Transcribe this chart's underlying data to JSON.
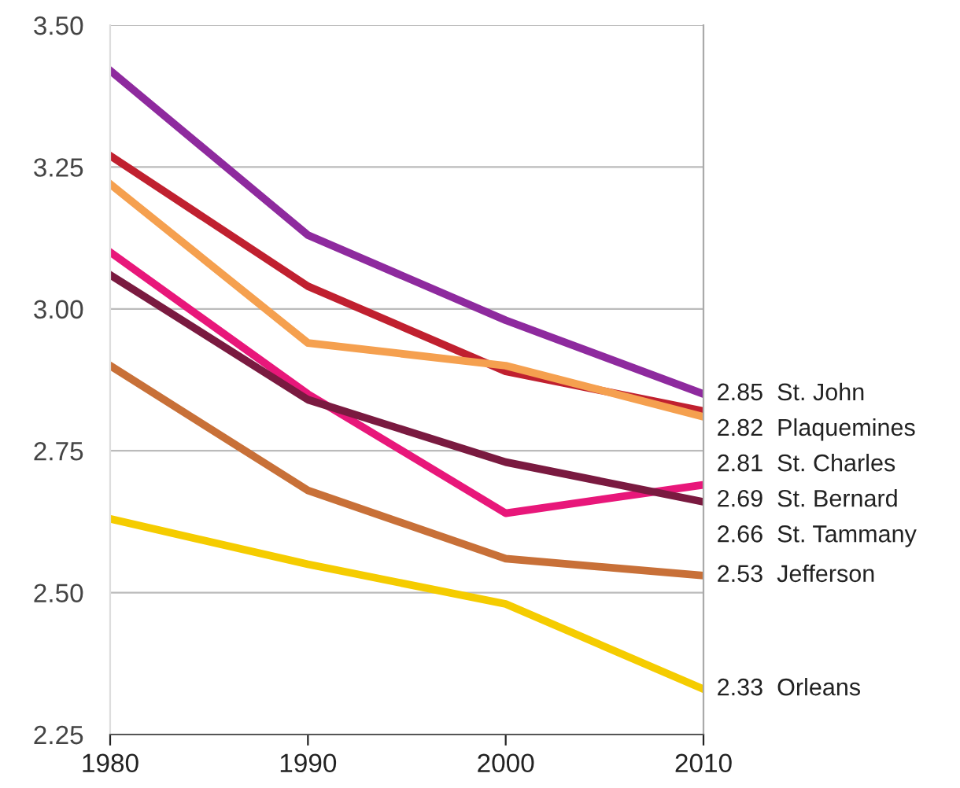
{
  "chart_data": {
    "type": "line",
    "x": [
      1980,
      1990,
      2000,
      2010
    ],
    "series": [
      {
        "name": "St. John",
        "color": "#8e2a9e",
        "values": [
          3.42,
          3.13,
          2.98,
          2.85
        ],
        "value_labels": [
          null,
          null,
          null,
          "2.85"
        ]
      },
      {
        "name": "Plaquemines",
        "color": "#c0202f",
        "values": [
          3.27,
          3.04,
          2.89,
          2.82
        ],
        "value_labels": [
          null,
          null,
          null,
          "2.82"
        ]
      },
      {
        "name": "St. Charles",
        "color": "#f5a04f",
        "values": [
          3.22,
          2.94,
          2.9,
          2.81
        ],
        "value_labels": [
          null,
          null,
          null,
          "2.81"
        ]
      },
      {
        "name": "St. Bernard",
        "color": "#e8177a",
        "values": [
          3.1,
          2.85,
          2.64,
          2.69
        ],
        "value_labels": [
          null,
          null,
          null,
          "2.69"
        ]
      },
      {
        "name": "St. Tammany",
        "color": "#7a1a40",
        "values": [
          3.06,
          2.84,
          2.73,
          2.66
        ],
        "value_labels": [
          null,
          null,
          null,
          "2.66"
        ]
      },
      {
        "name": "Jefferson",
        "color": "#c87038",
        "values": [
          2.9,
          2.68,
          2.56,
          2.53
        ],
        "value_labels": [
          null,
          null,
          null,
          "2.53"
        ]
      },
      {
        "name": "Orleans",
        "color": "#f5cc00",
        "values": [
          2.63,
          2.55,
          2.48,
          2.33
        ],
        "value_labels": [
          null,
          null,
          null,
          "2.33"
        ]
      }
    ],
    "xlim": [
      1980,
      2010
    ],
    "xticks": [
      1980,
      1990,
      2000,
      2010
    ],
    "ylim": [
      2.25,
      3.5
    ],
    "yticks": [
      {
        "value": 2.25,
        "label": "2.25"
      },
      {
        "value": 2.5,
        "label": "2.50"
      },
      {
        "value": 2.75,
        "label": "2.75"
      },
      {
        "value": 3.0,
        "label": "3.00"
      },
      {
        "value": 3.25,
        "label": "3.25"
      },
      {
        "value": 3.5,
        "label": "3.50"
      }
    ],
    "grid": "y",
    "marker": "none",
    "line_style": "solid"
  }
}
